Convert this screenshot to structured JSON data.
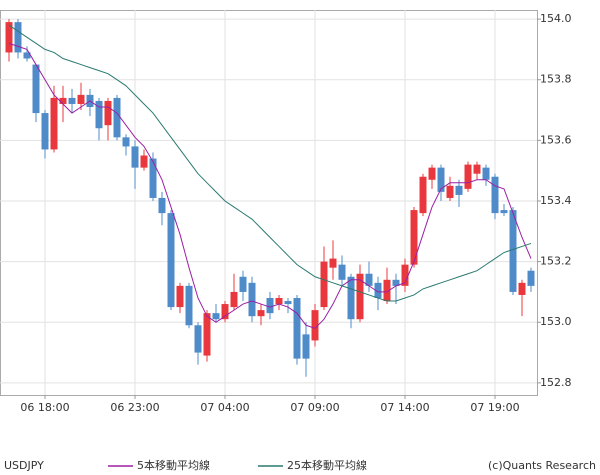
{
  "chart_data": {
    "type": "candlestick",
    "label": "USDJPY",
    "credit": "(c)Quants Research",
    "categories": [
      null,
      null,
      null,
      null,
      "06 18:00",
      null,
      null,
      null,
      null,
      null,
      null,
      null,
      null,
      null,
      "06 23:00",
      null,
      null,
      null,
      null,
      null,
      null,
      null,
      null,
      null,
      "07 04:00",
      null,
      null,
      null,
      null,
      null,
      null,
      null,
      null,
      null,
      "07 09:00",
      null,
      null,
      null,
      null,
      null,
      null,
      null,
      null,
      null,
      "07 14:00",
      null,
      null,
      null,
      null,
      null,
      null,
      null,
      null,
      null,
      "07 19:00",
      null,
      null,
      null,
      null
    ],
    "open": [
      153.89,
      153.99,
      153.89,
      153.85,
      153.69,
      153.57,
      153.72,
      153.74,
      153.72,
      153.75,
      153.73,
      153.65,
      153.74,
      153.61,
      153.58,
      153.51,
      153.54,
      153.41,
      153.36,
      153.05,
      153.12,
      152.99,
      152.89,
      153.03,
      153.01,
      153.05,
      153.15,
      153.13,
      153.02,
      153.08,
      153.06,
      153.07,
      153.08,
      152.96,
      152.94,
      153.05,
      153.18,
      153.19,
      153.15,
      153.01,
      153.16,
      153.13,
      153.07,
      153.14,
      153.12,
      153.19,
      153.36,
      153.47,
      153.51,
      153.41,
      153.45,
      153.44,
      153.49,
      153.51,
      153.48,
      153.37,
      153.37,
      153.09,
      153.17
    ],
    "high": [
      154.0,
      154.0,
      153.91,
      153.85,
      153.7,
      153.78,
      153.78,
      153.77,
      153.79,
      153.77,
      153.74,
      153.74,
      153.75,
      153.62,
      153.6,
      153.57,
      153.56,
      153.43,
      153.37,
      153.13,
      153.13,
      153.0,
      153.04,
      153.06,
      153.07,
      153.16,
      153.17,
      153.15,
      153.06,
      153.1,
      153.09,
      153.08,
      153.09,
      153.0,
      153.06,
      153.25,
      153.27,
      153.22,
      153.16,
      153.19,
      153.2,
      153.15,
      153.18,
      153.16,
      153.21,
      153.38,
      153.49,
      153.52,
      153.52,
      153.48,
      153.47,
      153.53,
      153.53,
      153.52,
      153.49,
      153.39,
      153.38,
      153.14,
      153.18
    ],
    "low": [
      153.86,
      153.87,
      153.86,
      153.66,
      153.54,
      153.56,
      153.66,
      153.69,
      153.7,
      153.68,
      153.6,
      153.6,
      153.6,
      153.55,
      153.44,
      153.5,
      153.4,
      153.32,
      153.04,
      153.03,
      152.98,
      152.86,
      152.87,
      153.0,
      153.0,
      153.04,
      153.07,
      153.0,
      152.99,
      153.01,
      153.04,
      153.03,
      152.86,
      152.82,
      152.92,
      153.04,
      153.14,
      153.12,
      152.98,
      153.0,
      153.1,
      153.04,
      153.06,
      153.06,
      153.1,
      153.18,
      153.35,
      153.44,
      153.4,
      153.4,
      153.38,
      153.43,
      153.47,
      153.45,
      153.34,
      153.35,
      153.09,
      153.02,
      153.1
    ],
    "close": [
      153.99,
      153.89,
      153.87,
      153.69,
      153.57,
      153.74,
      153.74,
      153.72,
      153.75,
      153.71,
      153.64,
      153.73,
      153.61,
      153.58,
      153.51,
      153.55,
      153.41,
      153.36,
      153.05,
      153.12,
      152.99,
      152.9,
      153.03,
      153.01,
      153.06,
      153.1,
      153.1,
      153.02,
      153.04,
      153.03,
      153.08,
      153.06,
      152.88,
      152.88,
      153.04,
      153.2,
      153.21,
      153.14,
      153.01,
      153.16,
      153.12,
      153.08,
      153.14,
      153.12,
      153.19,
      153.37,
      153.48,
      153.51,
      153.43,
      153.45,
      153.42,
      153.52,
      153.52,
      153.47,
      153.36,
      153.36,
      153.1,
      153.13,
      153.12
    ],
    "up_color": "#e8383d",
    "down_color": "#4f8bc9",
    "series": [
      {
        "name": "5本移動平均線",
        "color": "#9b1fa6",
        "values": [
          153.92,
          153.91,
          153.9,
          153.85,
          153.8,
          153.75,
          153.72,
          153.69,
          153.71,
          153.73,
          153.71,
          153.71,
          153.69,
          153.65,
          153.61,
          153.58,
          153.53,
          153.47,
          153.38,
          153.29,
          153.18,
          153.08,
          153.02,
          153.0,
          153.02,
          153.04,
          153.06,
          153.07,
          153.06,
          153.05,
          153.06,
          153.05,
          153.03,
          152.99,
          152.98,
          153.01,
          153.06,
          153.12,
          153.14,
          153.14,
          153.12,
          153.1,
          153.1,
          153.12,
          153.13,
          153.2,
          153.29,
          153.38,
          153.44,
          153.46,
          153.46,
          153.46,
          153.47,
          153.47,
          153.45,
          153.44,
          153.36,
          153.28,
          153.21
        ]
      },
      {
        "name": "25本移動平均線",
        "color": "#2a7a70",
        "values": [
          153.98,
          153.96,
          153.94,
          153.92,
          153.9,
          153.89,
          153.87,
          153.86,
          153.85,
          153.84,
          153.83,
          153.82,
          153.8,
          153.78,
          153.75,
          153.72,
          153.69,
          153.65,
          153.61,
          153.57,
          153.53,
          153.49,
          153.46,
          153.43,
          153.4,
          153.38,
          153.36,
          153.34,
          153.31,
          153.28,
          153.25,
          153.22,
          153.19,
          153.17,
          153.15,
          153.14,
          153.13,
          153.12,
          153.11,
          153.1,
          153.09,
          153.08,
          153.07,
          153.07,
          153.08,
          153.09,
          153.11,
          153.12,
          153.13,
          153.14,
          153.15,
          153.16,
          153.17,
          153.19,
          153.21,
          153.23,
          153.24,
          153.25,
          153.26
        ]
      }
    ],
    "ylim": [
      152.76,
      154.03
    ],
    "yticks": [
      {
        "value": 154,
        "label": "154.0"
      },
      153.8,
      153.6,
      153.4,
      153.2,
      {
        "value": 153,
        "label": "153.0"
      },
      152.8
    ],
    "grid": true
  }
}
